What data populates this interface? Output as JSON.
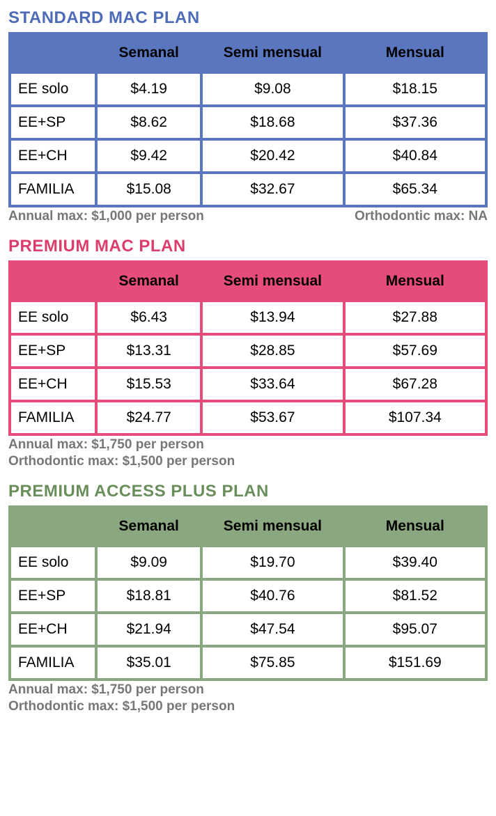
{
  "col_widths": [
    "18%",
    "22%",
    "30%",
    "30%"
  ],
  "plans": [
    {
      "title": "STANDARD  MAC PLAN",
      "title_color": "#4e6bb8",
      "table_bg": "#5a76bf",
      "columns": [
        "",
        "Semanal",
        "Semi mensual",
        "Mensual"
      ],
      "rows": [
        [
          "EE solo",
          "$4.19",
          "$9.08",
          "$18.15"
        ],
        [
          "EE+SP",
          "$8.62",
          "$18.68",
          "$37.36"
        ],
        [
          "EE+CH",
          "$9.42",
          "$20.42",
          "$40.84"
        ],
        [
          "FAMILIA",
          "$15.08",
          "$32.67",
          "$65.34"
        ]
      ],
      "footnotes": [
        "Annual max: $1,000 per person",
        "Orthodontic max: NA"
      ],
      "footnotes_layout": "spread"
    },
    {
      "title": "PREMIUM MAC PLAN",
      "title_color": "#dc3d6c",
      "table_bg": "#e54c7a",
      "columns": [
        "",
        "Semanal",
        "Semi mensual",
        "Mensual"
      ],
      "rows": [
        [
          "EE solo",
          "$6.43",
          "$13.94",
          "$27.88"
        ],
        [
          "EE+SP",
          "$13.31",
          "$28.85",
          "$57.69"
        ],
        [
          "EE+CH",
          "$15.53",
          "$33.64",
          "$67.28"
        ],
        [
          "FAMILIA",
          "$24.77",
          "$53.67",
          "$107.34"
        ]
      ],
      "footnotes": [
        "Annual max: $1,750 per person",
        "Orthodontic max: $1,500 per person"
      ],
      "footnotes_layout": "stacked"
    },
    {
      "title": "PREMIUM ACCESS PLUS PLAN",
      "title_color": "#6a8e5b",
      "table_bg": "#8aa77f",
      "columns": [
        "",
        "Semanal",
        "Semi mensual",
        "Mensual"
      ],
      "rows": [
        [
          "EE solo",
          "$9.09",
          "$19.70",
          "$39.40"
        ],
        [
          "EE+SP",
          "$18.81",
          "$40.76",
          "$81.52"
        ],
        [
          "EE+CH",
          "$21.94",
          "$47.54",
          "$95.07"
        ],
        [
          "FAMILIA",
          "$35.01",
          "$75.85",
          "$151.69"
        ]
      ],
      "footnotes": [
        "Annual max: $1,750 per person",
        "Orthodontic max: $1,500 per person"
      ],
      "footnotes_layout": "stacked"
    }
  ]
}
